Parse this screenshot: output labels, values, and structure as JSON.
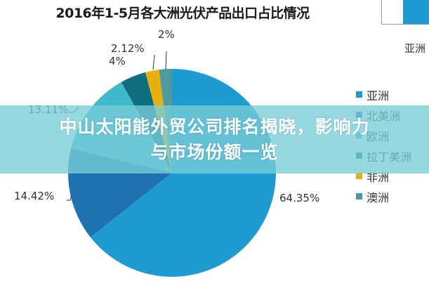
{
  "chart_data": {
    "type": "pie",
    "title": "2016年1-5月各大洲光伏产品出口占比情况",
    "categories": [
      "亚洲",
      "北美洲",
      "欧洲",
      "拉丁美洲",
      "非洲",
      "澳洲"
    ],
    "values": [
      64.35,
      14.42,
      13.11,
      4,
      2.12,
      2
    ],
    "labels": [
      "64.35%",
      "14.42%",
      "13.11%",
      "4%",
      "2.12%",
      "2%"
    ],
    "colors": [
      "#1e9bd0",
      "#1f72b0",
      "#3fb8c9",
      "#0f6e80",
      "#e8b00f",
      "#4e9a9c"
    ],
    "legend_position": "right",
    "start_angle": "12 o'clock, clockwise"
  },
  "title": "2016年1-5月各大洲光伏产品出口占比情况",
  "side_label": "亚洲",
  "labels": {
    "asia": "64.35%",
    "north_america": "14.42%",
    "europe": "13.11%",
    "latin_america": "4%",
    "africa": "2.12%",
    "oceania": "2%"
  },
  "legend": [
    {
      "label": "亚洲",
      "color": "#1e9bd0"
    },
    {
      "label": "北美洲",
      "color": "#1f72b0"
    },
    {
      "label": "欧洲",
      "color": "#3fb8c9"
    },
    {
      "label": "拉丁美洲",
      "color": "#0f6e80"
    },
    {
      "label": "非洲",
      "color": "#e8b00f"
    },
    {
      "label": "澳洲",
      "color": "#4e9a9c"
    }
  ],
  "banner": {
    "line1": "中山太阳能外贸公司排名揭晓，影响力",
    "line2": "与市场份额一览"
  }
}
